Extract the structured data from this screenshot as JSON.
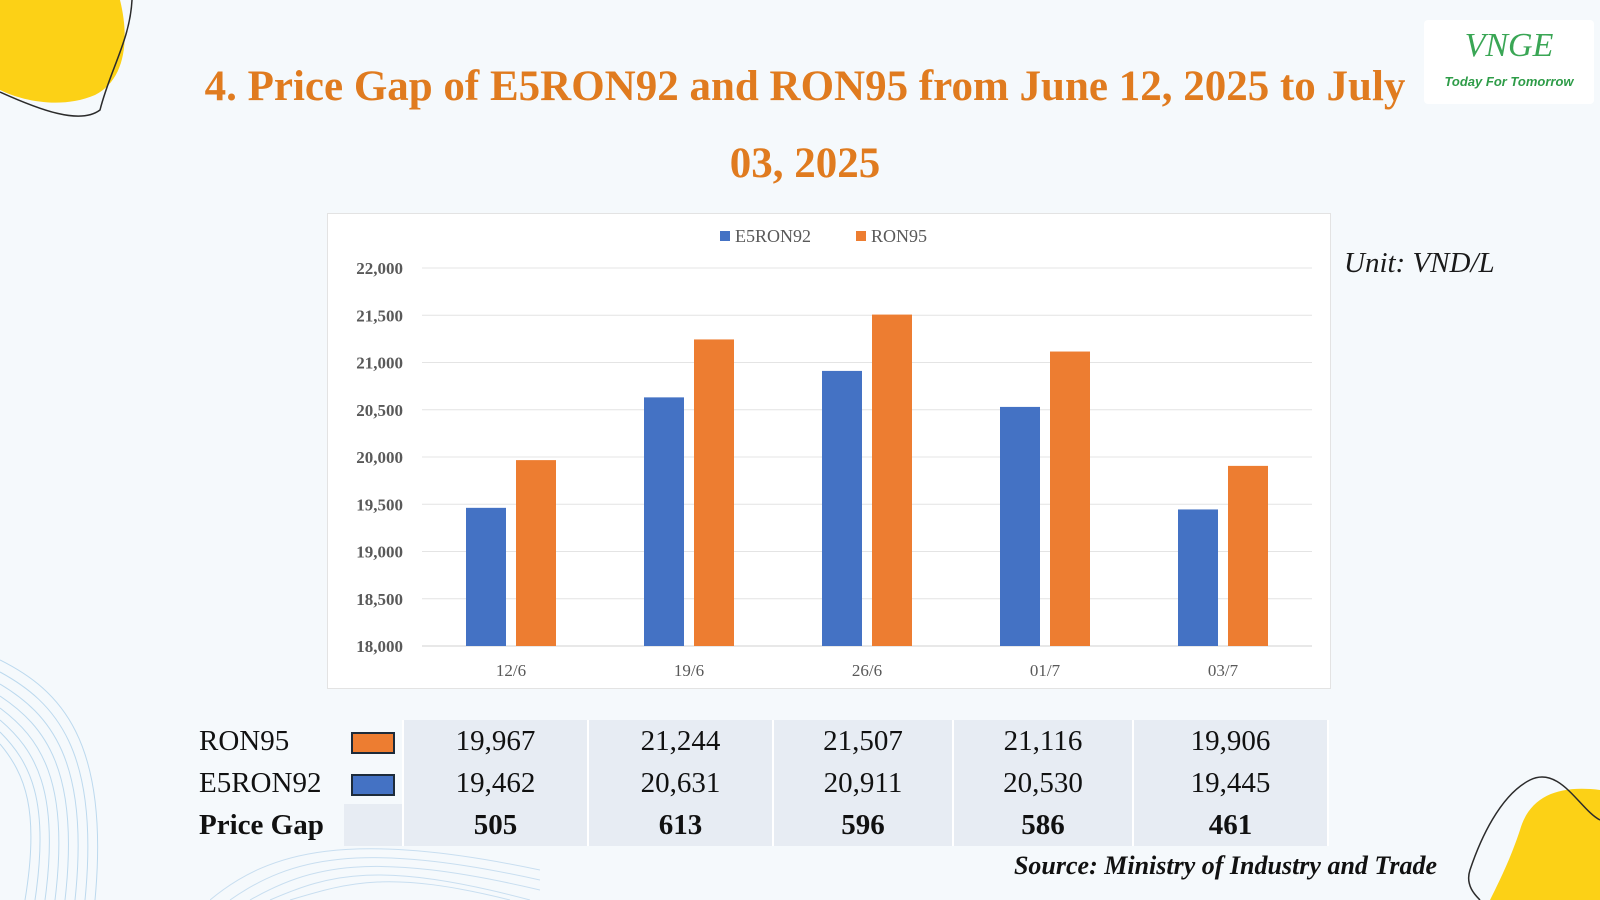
{
  "title": "4. Price Gap of E5RON92 and RON95 from June 12, 2025 to July 03, 2025",
  "logo": {
    "mark": "VNGE",
    "tagline": "Today For Tomorrow"
  },
  "unit": "Unit: VND/L",
  "source": "Source: Ministry of Industry and Trade",
  "colors": {
    "title": "#e07b1f",
    "e5ron92": "#4472c4",
    "ron95": "#ed7d31",
    "accent_yellow": "#fcd116",
    "table_bg": "#e7ecf3"
  },
  "chart_data": {
    "type": "bar",
    "categories": [
      "12/6",
      "19/6",
      "26/6",
      "01/7",
      "03/7"
    ],
    "series": [
      {
        "name": "E5RON92",
        "values": [
          19462,
          20631,
          20911,
          20530,
          19445
        ]
      },
      {
        "name": "RON95",
        "values": [
          19967,
          21244,
          21507,
          21116,
          19906
        ]
      }
    ],
    "ylim": [
      18000,
      22000
    ],
    "yticks": [
      "18,000",
      "18,500",
      "19,000",
      "19,500",
      "20,000",
      "20,500",
      "21,000",
      "21,500",
      "22,000"
    ],
    "grid": true,
    "legend": "top-center"
  },
  "table": {
    "rows": [
      {
        "label": "RON95",
        "series": "ron95",
        "values": [
          "19,967",
          "21,244",
          "21,507",
          "21,116",
          "19,906"
        ]
      },
      {
        "label": "E5RON92",
        "series": "e5ron92",
        "values": [
          "19,462",
          "20,631",
          "20,911",
          "20,530",
          "19,445"
        ]
      },
      {
        "label": "Price Gap",
        "values": [
          "505",
          "613",
          "596",
          "586",
          "461"
        ]
      }
    ]
  }
}
